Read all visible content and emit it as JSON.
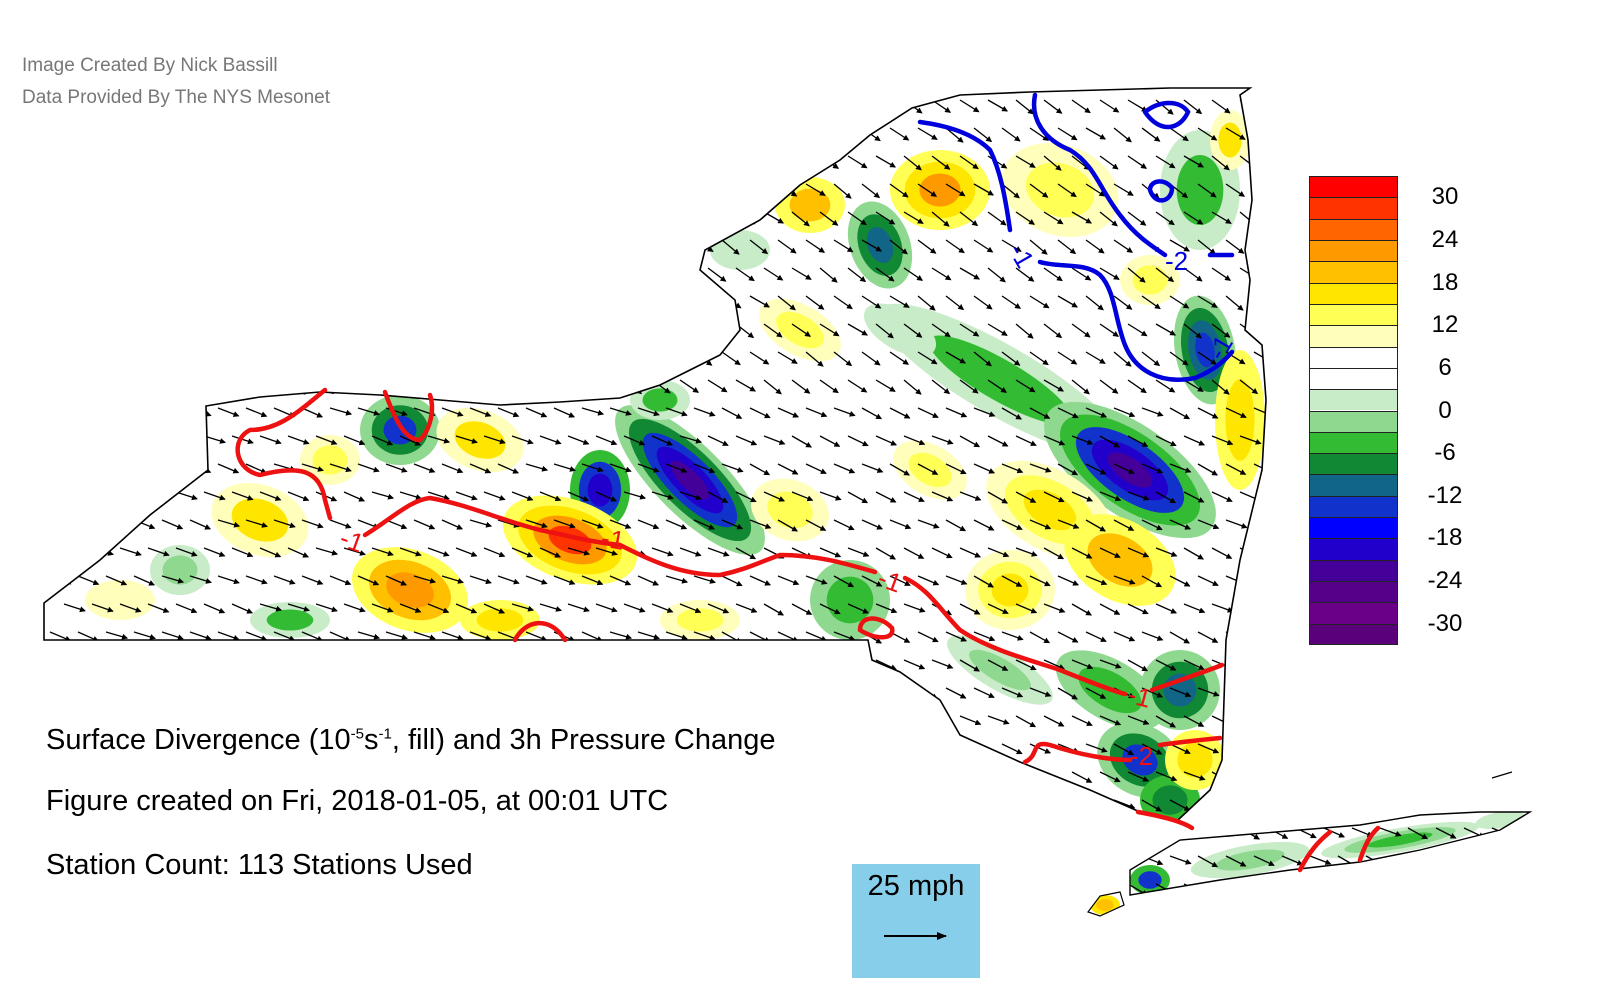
{
  "credits": {
    "line1": "Image Created By Nick Bassill",
    "line2": "Data Provided By The NYS Mesonet"
  },
  "title": {
    "prefix": "Surface Divergence (10",
    "exp1": "-5",
    "mid": "s",
    "exp2": "-1",
    "suffix": ", fill) and 3h Pressure Change"
  },
  "created": "Figure created on Fri, 2018-01-05, at 00:01 UTC",
  "station_count": "Station Count: 113 Stations Used",
  "reference_vector": {
    "label": "25 mph"
  },
  "colorbar": {
    "labels": [
      "30",
      "24",
      "18",
      "12",
      "6",
      "0",
      "-6",
      "-12",
      "-18",
      "-24",
      "-30"
    ],
    "colors": [
      "#ff0000",
      "#ff3300",
      "#ff6600",
      "#ff9900",
      "#ffc000",
      "#ffe600",
      "#ffff55",
      "#ffffbb",
      "#ffffff",
      "#ffffff",
      "#c8ebc8",
      "#8fd88f",
      "#33bb33",
      "#118833",
      "#116688",
      "#1133cc",
      "#0000ff",
      "#2200cc",
      "#440099",
      "#550088",
      "#6a0088",
      "#5a007a"
    ]
  },
  "contours": {
    "pressure_labels": [
      "-1",
      "-2",
      "-1",
      "-1",
      "-1",
      "-1",
      "-1",
      "-2"
    ]
  },
  "colors": {
    "positive_contour": "#ee1111",
    "negative_contour": "#0000dd",
    "state_fill": "#ffffff",
    "ref_box": "#87ceeb"
  }
}
